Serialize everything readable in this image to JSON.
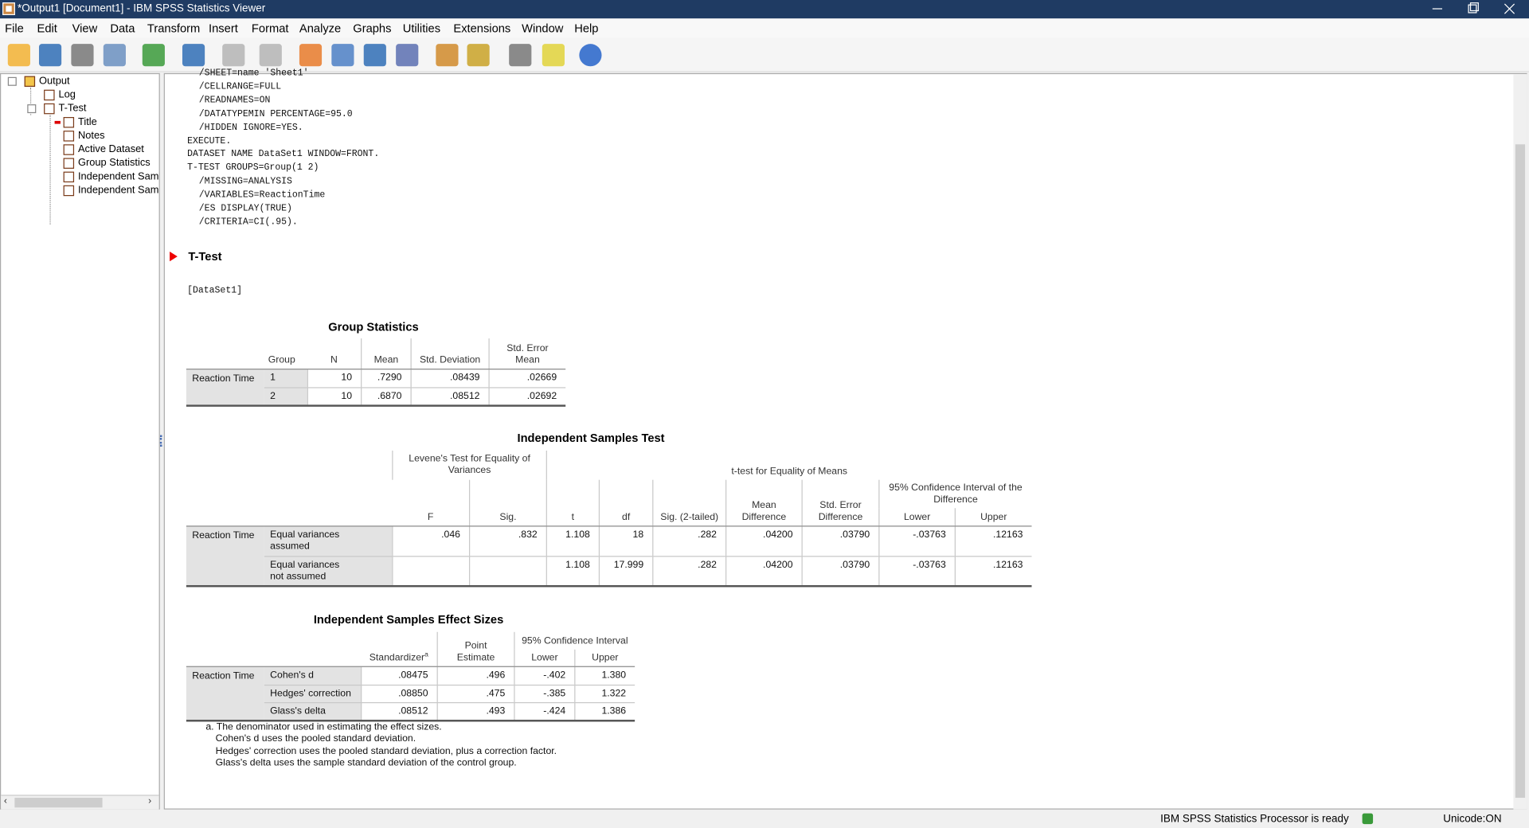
{
  "window": {
    "title": "*Output1 [Document1] - IBM SPSS Statistics Viewer"
  },
  "menu": [
    "File",
    "Edit",
    "View",
    "Data",
    "Transform",
    "Insert",
    "Format",
    "Analyze",
    "Graphs",
    "Utilities",
    "Extensions",
    "Window",
    "Help"
  ],
  "tree": [
    "Output",
    "Log",
    "T-Test",
    "Title",
    "Notes",
    "Active Dataset",
    "Group Statistics",
    "Independent Sam",
    "Independent Sam"
  ],
  "syntax": [
    "/SHEET=name 'Sheet1'",
    "/CELLRANGE=FULL",
    "/READNAMES=ON",
    "/DATATYPEMIN PERCENTAGE=95.0",
    "/HIDDEN IGNORE=YES.",
    "EXECUTE.",
    "DATASET NAME DataSet1 WINDOW=FRONT.",
    "T-TEST GROUPS=Group(1 2)",
    "/MISSING=ANALYSIS",
    "/VARIABLES=ReactionTime",
    "/ES DISPLAY(TRUE)",
    "/CRITERIA=CI(.95)."
  ],
  "heading": "T-Test",
  "dataset": "[DataSet1]",
  "group_statistics": {
    "title": "Group Statistics",
    "header": {
      "group": "Group",
      "columns": [
        "N",
        "Mean",
        "Std. Deviation",
        "Std. Error Mean"
      ]
    },
    "row_label": "Reaction Time",
    "rows": [
      {
        "label": "1",
        "values": [
          "10",
          ".7290",
          ".08439",
          ".02669"
        ]
      },
      {
        "label": "2",
        "values": [
          "10",
          ".6870",
          ".08512",
          ".02692"
        ]
      }
    ]
  },
  "independent_samples_test": {
    "title": "Independent Samples Test",
    "header": {
      "levene": "Levene's Test for Equality of Variances",
      "ttest": "t-test for Equality of Means",
      "ci": "95% Confidence Interval of the Difference",
      "columns": [
        "F",
        "Sig.",
        "t",
        "df",
        "Sig. (2-tailed)",
        "Mean Difference",
        "Std. Error Difference",
        "Lower",
        "Upper"
      ]
    },
    "row_label": "Reaction Time",
    "rows": [
      {
        "label": "Equal variances assumed",
        "values": [
          ".046",
          ".832",
          "1.108",
          "18",
          ".282",
          ".04200",
          ".03790",
          "-.03763",
          ".12163"
        ]
      },
      {
        "label": "Equal variances not assumed",
        "values": [
          null,
          null,
          "1.108",
          "17.999",
          ".282",
          ".04200",
          ".03790",
          "-.03763",
          ".12163"
        ]
      }
    ]
  },
  "effect_sizes": {
    "title": "Independent Samples Effect Sizes",
    "header": {
      "standardizer": "Standardizer",
      "footnote_marker": "a",
      "point_estimate": "Point Estimate",
      "ci": "95% Confidence Interval",
      "columns": [
        "Lower",
        "Upper"
      ]
    },
    "row_label": "Reaction Time",
    "rows": [
      {
        "label": "Cohen's d",
        "values": [
          ".08475",
          ".496",
          "-.402",
          "1.380"
        ]
      },
      {
        "label": "Hedges' correction",
        "values": [
          ".08850",
          ".475",
          "-.385",
          "1.322"
        ]
      },
      {
        "label": "Glass's delta",
        "values": [
          ".08512",
          ".493",
          "-.424",
          "1.386"
        ]
      }
    ],
    "footnotes": [
      "a. The denominator used in estimating the effect sizes.",
      "Cohen's d uses the pooled standard deviation.",
      "Hedges' correction uses the pooled standard deviation, plus a correction factor.",
      "Glass's delta uses the sample standard deviation of the control group."
    ]
  },
  "status": {
    "processor": "IBM SPSS Statistics Processor is ready",
    "unicode": "Unicode:ON"
  }
}
